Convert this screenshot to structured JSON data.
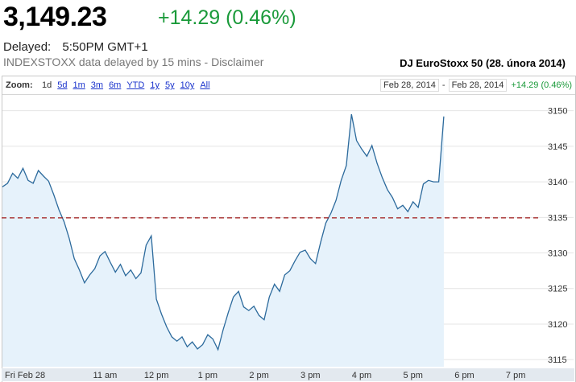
{
  "quote": {
    "price": "3,149.23",
    "change": "+14.29 (0.46%)",
    "delayed_label": "Delayed:",
    "delayed_time": "5:50PM GMT+1",
    "source_text": "INDEXSTOXX data delayed by 15 mins - Disclaimer"
  },
  "chart_title": "DJ EuroStoxx 50 (28. února 2014)",
  "toolbar": {
    "zoom_label": "Zoom:",
    "options": [
      "1d",
      "5d",
      "1m",
      "3m",
      "6m",
      "YTD",
      "1y",
      "5y",
      "10y",
      "All"
    ],
    "active": "1d",
    "range_start": "Feb 28, 2014",
    "range_sep": "-",
    "range_end": "Feb 28, 2014",
    "range_change": "+14.29 (0.46%)"
  },
  "colors": {
    "up": "#1a9a3a",
    "line": "#2c6a9c",
    "fill": "#e6f2fb",
    "prev_close": "#a01818",
    "link": "#1a33cc"
  },
  "chart_data": {
    "type": "line",
    "title": "DJ EuroStoxx 50 (28. února 2014)",
    "x_tick_labels": [
      "Fri Feb 28",
      "11 am",
      "12 pm",
      "1 pm",
      "2 pm",
      "3 pm",
      "4 pm",
      "5 pm",
      "6 pm",
      "7 pm"
    ],
    "y_ticks": [
      3115,
      3120,
      3125,
      3130,
      3135,
      3140,
      3145,
      3150
    ],
    "ylim": [
      3114,
      3152
    ],
    "xlim": [
      9.0,
      19.5
    ],
    "previous_close": 3134.94,
    "grid": "horizontal",
    "series": [
      {
        "x": [
          9.0,
          9.1,
          9.2,
          9.3,
          9.4,
          9.5,
          9.6,
          9.7,
          9.8,
          9.9,
          10.0,
          10.1,
          10.2,
          10.3,
          10.4,
          10.5,
          10.6,
          10.7,
          10.8,
          10.9,
          11.0,
          11.1,
          11.2,
          11.3,
          11.4,
          11.5,
          11.6,
          11.7,
          11.8,
          11.9,
          12.0,
          12.1,
          12.2,
          12.3,
          12.4,
          12.5,
          12.6,
          12.7,
          12.8,
          12.9,
          13.0,
          13.1,
          13.2,
          13.3,
          13.4,
          13.5,
          13.6,
          13.7,
          13.8,
          13.9,
          14.0,
          14.1,
          14.2,
          14.3,
          14.4,
          14.5,
          14.6,
          14.7,
          14.8,
          14.9,
          15.0,
          15.1,
          15.2,
          15.3,
          15.4,
          15.5,
          15.6,
          15.7,
          15.8,
          15.9,
          16.0,
          16.1,
          16.2,
          16.3,
          16.4,
          16.5,
          16.6,
          16.7,
          16.8,
          16.9,
          17.0,
          17.1,
          17.2,
          17.3,
          17.4,
          17.5,
          17.6
        ],
        "y": [
          3139.3,
          3139.8,
          3141.2,
          3140.5,
          3141.9,
          3140.2,
          3139.8,
          3141.6,
          3140.8,
          3140.1,
          3138.2,
          3136.1,
          3134.4,
          3132.1,
          3129.2,
          3127.6,
          3125.8,
          3126.9,
          3127.8,
          3129.6,
          3130.2,
          3128.7,
          3127.3,
          3128.4,
          3126.8,
          3127.6,
          3126.4,
          3127.2,
          3131.1,
          3132.4,
          3123.5,
          3121.4,
          3119.6,
          3118.2,
          3117.6,
          3118.2,
          3116.8,
          3117.5,
          3116.5,
          3117.1,
          3118.5,
          3117.9,
          3116.4,
          3119.2,
          3121.6,
          3123.8,
          3124.6,
          3122.4,
          3121.9,
          3122.5,
          3121.2,
          3120.6,
          3123.8,
          3125.6,
          3124.6,
          3126.9,
          3127.5,
          3128.9,
          3130.1,
          3130.4,
          3129.2,
          3128.5,
          3131.5,
          3134.2,
          3135.6,
          3137.4,
          3140.2,
          3142.3,
          3149.5,
          3145.8,
          3144.6,
          3143.6,
          3145.1,
          3142.6,
          3140.6,
          3138.9,
          3137.8,
          3136.2,
          3136.7,
          3135.8,
          3137.2,
          3136.4,
          3139.7,
          3140.2,
          3140.0,
          3140.0,
          3149.2
        ]
      }
    ]
  }
}
